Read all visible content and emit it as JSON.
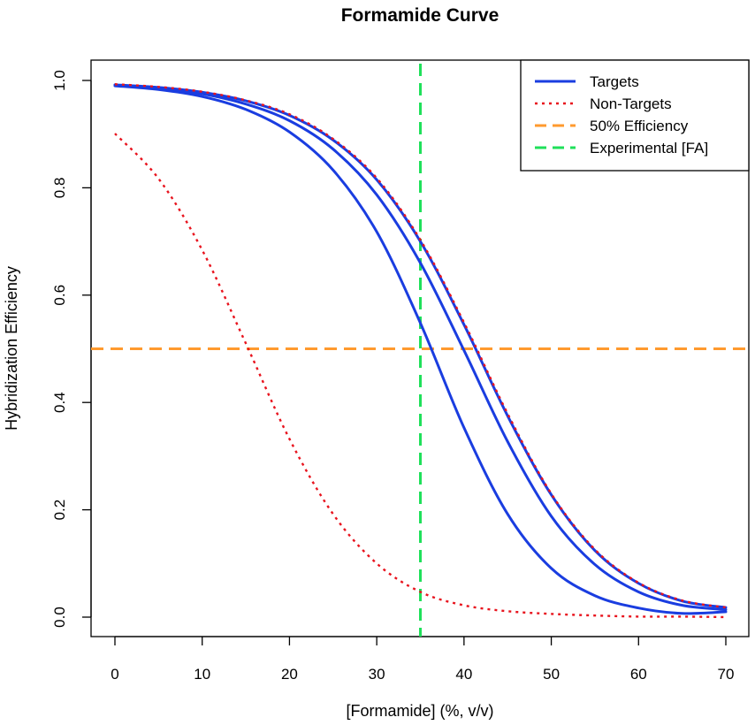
{
  "chart_data": {
    "type": "line",
    "title": "Formamide Curve",
    "xlabel": "[Formamide] (%, v/v)",
    "ylabel": "Hybridization Efficiency",
    "xlim": [
      0,
      70
    ],
    "ylim": [
      0,
      1
    ],
    "x_ticks": [
      "0",
      "10",
      "20",
      "30",
      "40",
      "50",
      "60",
      "70"
    ],
    "y_ticks": [
      "0.0",
      "0.2",
      "0.4",
      "0.6",
      "0.8",
      "1.0"
    ],
    "x_tick_values": [
      0,
      10,
      20,
      30,
      40,
      50,
      60,
      70
    ],
    "y_tick_values": [
      0,
      0.2,
      0.4,
      0.6,
      0.8,
      1.0
    ],
    "grid": false,
    "legend_position": "top-right",
    "x": [
      0,
      5,
      10,
      15,
      20,
      25,
      30,
      35,
      40,
      45,
      50,
      55,
      60,
      65,
      70
    ],
    "series": [
      {
        "group": "targets",
        "color": "#1a3de0",
        "style": "solid",
        "values": [
          0.99,
          0.983,
          0.97,
          0.946,
          0.904,
          0.833,
          0.718,
          0.548,
          0.353,
          0.192,
          0.091,
          0.04,
          0.017,
          0.007,
          0.01
        ]
      },
      {
        "group": "targets",
        "color": "#1a3de0",
        "style": "solid",
        "values": [
          0.991,
          0.985,
          0.975,
          0.956,
          0.925,
          0.872,
          0.787,
          0.66,
          0.497,
          0.327,
          0.188,
          0.098,
          0.047,
          0.022,
          0.014
        ]
      },
      {
        "group": "targets",
        "color": "#1a3de0",
        "style": "solid",
        "values": [
          0.992,
          0.987,
          0.978,
          0.962,
          0.935,
          0.889,
          0.815,
          0.7,
          0.545,
          0.375,
          0.228,
          0.124,
          0.063,
          0.03,
          0.018
        ]
      },
      {
        "group": "non-targets",
        "color": "#e8141e",
        "style": "dotted",
        "values": [
          0.993,
          0.988,
          0.979,
          0.963,
          0.937,
          0.891,
          0.818,
          0.703,
          0.549,
          0.379,
          0.23,
          0.126,
          0.064,
          0.031,
          0.018
        ]
      },
      {
        "group": "non-targets",
        "color": "#e8141e",
        "style": "dotted",
        "values": [
          0.901,
          0.817,
          0.684,
          0.51,
          0.332,
          0.192,
          0.1,
          0.047,
          0.022,
          0.011,
          0.006,
          0.003,
          0.001,
          0.001,
          0.0
        ]
      }
    ],
    "reference_lines": [
      {
        "orientation": "horizontal",
        "value": 0.5,
        "color": "#ff9a2e",
        "style": "dashed"
      },
      {
        "orientation": "vertical",
        "value": 35,
        "color": "#1fe05a",
        "style": "dashed"
      }
    ],
    "legend": [
      {
        "label": "Targets",
        "color": "#1a3de0",
        "style": "solid"
      },
      {
        "label": "Non-Targets",
        "color": "#e8141e",
        "style": "dotted"
      },
      {
        "label": "50% Efficiency",
        "color": "#ff9a2e",
        "style": "dashed"
      },
      {
        "label": "Experimental [FA]",
        "color": "#1fe05a",
        "style": "dashed"
      }
    ]
  }
}
